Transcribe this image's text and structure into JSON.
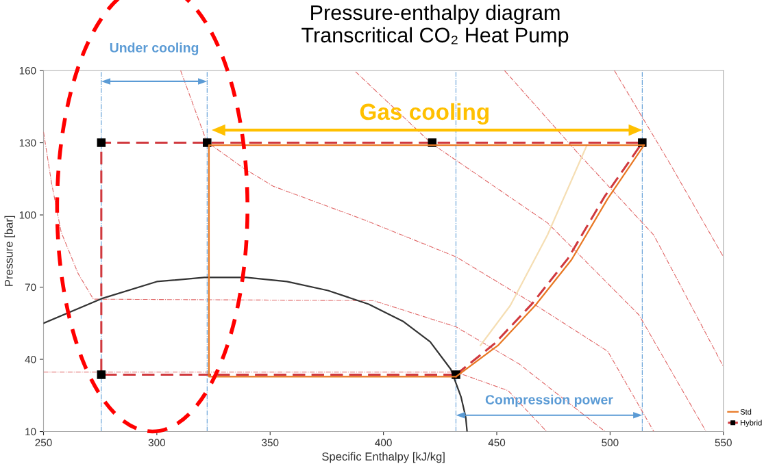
{
  "chart_data": {
    "type": "line",
    "title": "Pressure-enthalpy diagram\nTranscritical CO₂ Heat Pump",
    "xlabel": "Specific Enthalpy [kJ/kg]",
    "ylabel": "Pressure [bar]",
    "xlim": [
      250,
      550
    ],
    "xticks": [
      250,
      300,
      350,
      400,
      450,
      500,
      550
    ],
    "ylim": [
      10,
      160
    ],
    "yticks": [
      10,
      40,
      70,
      100,
      130,
      160
    ],
    "grid": false,
    "legend": "bottom right",
    "series": [
      {
        "color": "#e06666",
        "line_style": "dotted",
        "x": [
          250,
          253.6,
          257.8,
          265.3,
          272,
          395.6,
          432,
          460,
          497.8
        ],
        "values": [
          134.5,
          113,
          92.8,
          75.6,
          65,
          64.4,
          53.5,
          38,
          10
        ]
      },
      {
        "color": "#e06666",
        "line_style": "dotted",
        "x": [
          250,
          432,
          455,
          472
        ],
        "values": [
          34.7,
          34.7,
          27,
          10
        ]
      },
      {
        "color": "#e06666",
        "line_style": "dotted",
        "x": [
          310.5,
          322,
          338.5,
          351.4,
          391.7,
          432,
          465.5,
          499,
          519.3
        ],
        "values": [
          160,
          130.4,
          119.3,
          111.9,
          97.9,
          82.6,
          63.5,
          43.3,
          10
        ]
      },
      {
        "color": "#e06666",
        "line_style": "dotted",
        "x": [
          387.7,
          421.2,
          472.4,
          512.7,
          542.2
        ],
        "values": [
          159.5,
          129.7,
          96.7,
          58.5,
          10.3
        ]
      },
      {
        "color": "#e06666",
        "line_style": "dotted",
        "x": [
          453.4,
          485.6,
          519.3,
          550
        ],
        "values": [
          160,
          125.9,
          91.6,
          37
        ]
      },
      {
        "color": "#e06666",
        "line_style": "dotted",
        "x": [
          501.9,
          526,
          550
        ],
        "values": [
          160,
          122,
          82.6
        ]
      },
      {
        "color": "#f5deb3",
        "line_style": "solid",
        "x": [
          442.8,
          456,
          472.4,
          489.8
        ],
        "values": [
          45.8,
          62.4,
          91.7,
          129
        ]
      },
      {
        "color": "#333333",
        "line_style": "solid",
        "x": [
          250,
          275.6,
          300,
          321,
          339.4,
          357.4,
          375.5,
          393.5,
          408.6,
          420.6,
          429.7,
          434.2,
          436.3,
          436.9
        ],
        "values": [
          55,
          65.2,
          72.3,
          74,
          74,
          72.3,
          68.6,
          62.9,
          55.8,
          47.3,
          35.9,
          24.5,
          16,
          10
        ]
      },
      {
        "color": "#d0393e",
        "line_style": "dashed",
        "marker": "none",
        "x": [
          432,
          449,
          465.5,
          481.5,
          497.5,
          514.2
        ],
        "values": [
          33.6,
          46.5,
          63,
          82,
          107.5,
          130
        ]
      },
      {
        "name": "Hybrid",
        "color": "#d0393e",
        "line_style": "dashed",
        "marker": "square",
        "x": [
          432,
          275.5,
          275.5,
          322.2,
          421.5,
          514.2
        ],
        "values": [
          33.6,
          33.6,
          130,
          130,
          130,
          130
        ]
      },
      {
        "color": "#e87722",
        "line_style": "solid",
        "marker": "none",
        "x": [
          432,
          450.7,
          467,
          483,
          499,
          515
        ],
        "values": [
          32.8,
          45.9,
          62.4,
          81.4,
          106.8,
          129
        ]
      },
      {
        "name": "Std",
        "color": "#e87722",
        "line_style": "solid",
        "marker": "none",
        "x": [
          432,
          323,
          323,
          515
        ],
        "values": [
          32.8,
          32.8,
          129,
          129
        ]
      }
    ],
    "ref_lines": [
      {
        "axis": "x",
        "value": 275.5,
        "color": "#5b9bd5",
        "line_style": "dotted"
      },
      {
        "axis": "x",
        "value": 322.2,
        "color": "#5b9bd5",
        "line_style": "dotted"
      },
      {
        "axis": "x",
        "value": 432,
        "color": "#5b9bd5",
        "line_style": "dotted"
      },
      {
        "axis": "x",
        "value": 514.2,
        "color": "#5b9bd5",
        "line_style": "dotted"
      }
    ],
    "annotations": [
      "Under cooling",
      "Gas cooling",
      "Compression power"
    ]
  }
}
